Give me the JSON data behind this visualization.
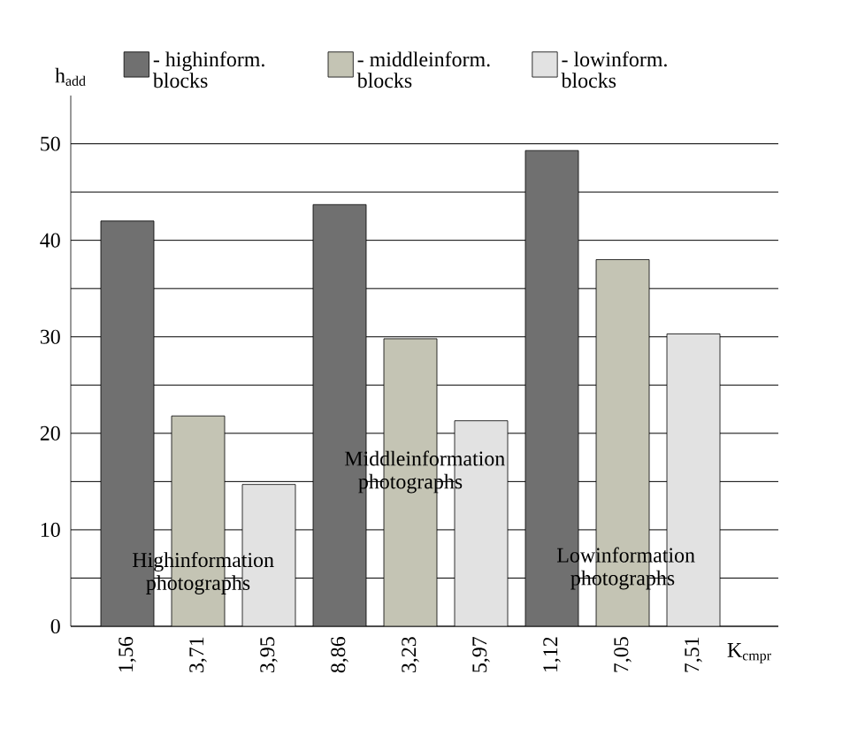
{
  "chart_data": {
    "type": "bar",
    "xlabel": "K$_{cmpr}$",
    "ylabel": "h$_{add}$",
    "categories": [
      "1,56",
      "3,71",
      "3,95",
      "8,86",
      "3,23",
      "5,97",
      "1,12",
      "7,05",
      "7,51"
    ],
    "series": [
      {
        "name": "- highinform. blocks",
        "color": "#707070",
        "values": [
          42,
          null,
          null,
          43.7,
          null,
          null,
          49.3,
          null,
          null
        ]
      },
      {
        "name": "- middleinform. blocks",
        "color": "#c4c4b4",
        "values": [
          null,
          21.8,
          null,
          null,
          29.8,
          null,
          null,
          38,
          null
        ]
      },
      {
        "name": "- lowinform. blocks",
        "color": "#e2e2e2",
        "values": [
          null,
          null,
          14.7,
          null,
          null,
          21.3,
          null,
          null,
          30.3
        ]
      }
    ],
    "ylim": [
      0,
      55
    ],
    "yticks": [
      0,
      {
        "value": 5,
        "label": null
      },
      10,
      {
        "value": 15,
        "label": null
      },
      20,
      {
        "value": 25,
        "label": null
      },
      30,
      {
        "value": 35,
        "label": null
      },
      40,
      {
        "value": 45,
        "label": null
      },
      50
    ],
    "grid": "y",
    "legend": "top",
    "annotations": [
      "Highinformation photographs",
      "Middleinformation photographs",
      "Lowinformation photographs"
    ]
  }
}
